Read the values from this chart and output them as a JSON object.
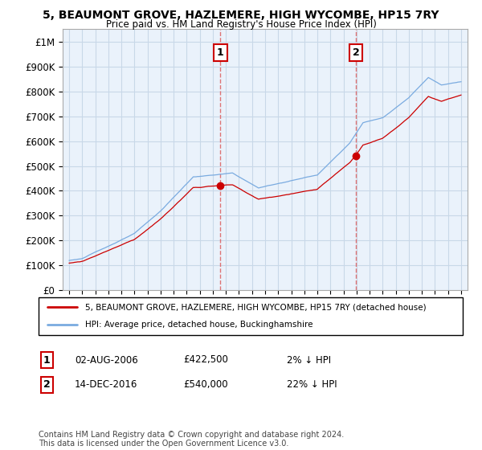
{
  "title": "5, BEAUMONT GROVE, HAZLEMERE, HIGH WYCOMBE, HP15 7RY",
  "subtitle": "Price paid vs. HM Land Registry's House Price Index (HPI)",
  "property_label": "5, BEAUMONT GROVE, HAZLEMERE, HIGH WYCOMBE, HP15 7RY (detached house)",
  "hpi_label": "HPI: Average price, detached house, Buckinghamshire",
  "footnote": "Contains HM Land Registry data © Crown copyright and database right 2024.\nThis data is licensed under the Open Government Licence v3.0.",
  "purchase1": {
    "label": "1",
    "date": "02-AUG-2006",
    "price": "£422,500",
    "hpi_diff": "2% ↓ HPI",
    "x_year": 2006.58,
    "price_val": 422500
  },
  "purchase2": {
    "label": "2",
    "date": "14-DEC-2016",
    "price": "£540,000",
    "hpi_diff": "22% ↓ HPI",
    "x_year": 2016.95,
    "price_val": 540000
  },
  "ylim": [
    0,
    1050000
  ],
  "xlim": [
    1994.5,
    2025.5
  ],
  "yticks": [
    0,
    100000,
    200000,
    300000,
    400000,
    500000,
    600000,
    700000,
    800000,
    900000,
    1000000
  ],
  "ytick_labels": [
    "£0",
    "£100K",
    "£200K",
    "£300K",
    "£400K",
    "£500K",
    "£600K",
    "£700K",
    "£800K",
    "£900K",
    "£1M"
  ],
  "xticks": [
    1995,
    1996,
    1997,
    1998,
    1999,
    2000,
    2001,
    2002,
    2003,
    2004,
    2005,
    2006,
    2007,
    2008,
    2009,
    2010,
    2011,
    2012,
    2013,
    2014,
    2015,
    2016,
    2017,
    2018,
    2019,
    2020,
    2021,
    2022,
    2023,
    2024,
    2025
  ],
  "property_color": "#cc0000",
  "hpi_color": "#7aabe0",
  "vline_color": "#dd6666",
  "dot_color": "#cc0000",
  "plot_bg_color": "#eaf2fb",
  "background_color": "#ffffff",
  "grid_color": "#c8d8e8"
}
